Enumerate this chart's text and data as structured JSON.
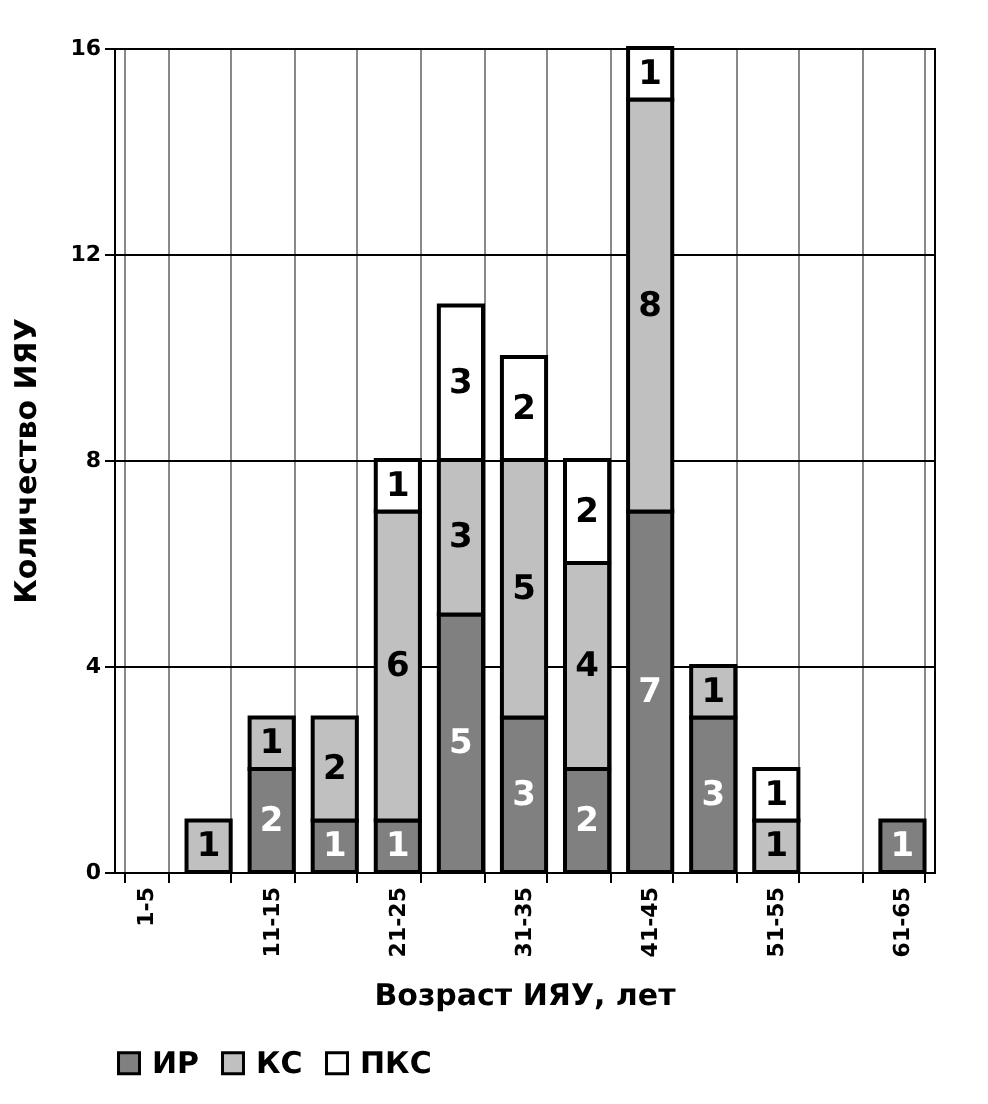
{
  "chart_data": {
    "type": "bar",
    "stacked": true,
    "xlabel": "Возраст ИЯУ, лет",
    "ylabel": "Количество ИЯУ",
    "categories": [
      "1-5",
      null,
      "11-15",
      null,
      "21-25",
      null,
      "31-35",
      null,
      "41-45",
      null,
      "51-55",
      null,
      "61-65"
    ],
    "series": [
      {
        "name": "ИР",
        "color": "#808080",
        "values": [
          null,
          null,
          2,
          1,
          1,
          5,
          3,
          2,
          7,
          3,
          null,
          null,
          1
        ]
      },
      {
        "name": "КС",
        "color": "#c0c0c0",
        "values": [
          null,
          1,
          1,
          2,
          6,
          3,
          5,
          4,
          8,
          1,
          1,
          null,
          null
        ]
      },
      {
        "name": "ПКС",
        "color": "#ffffff",
        "values": [
          null,
          null,
          null,
          null,
          1,
          3,
          2,
          2,
          1,
          null,
          1,
          null,
          null
        ]
      }
    ],
    "ylim": [
      0,
      16
    ],
    "yticks": [
      0,
      4,
      8,
      12,
      16
    ],
    "grid": true,
    "legend": "bottom",
    "data_labels": true
  }
}
